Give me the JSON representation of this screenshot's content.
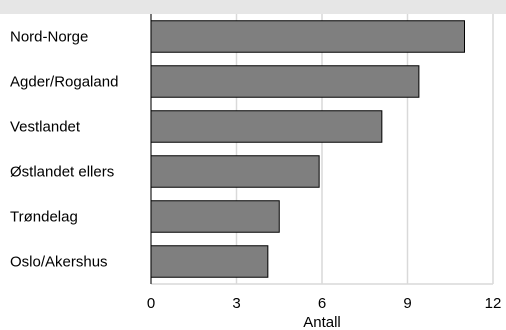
{
  "chart_data": {
    "type": "bar",
    "orientation": "horizontal",
    "categories": [
      "Nord-Norge",
      "Agder/Rogaland",
      "Vestlandet",
      "Østlandet ellers",
      "Trøndelag",
      "Oslo/Akershus"
    ],
    "values": [
      11.0,
      9.4,
      8.1,
      5.9,
      4.5,
      4.1
    ],
    "xlabel": "Antall",
    "xlim": [
      0,
      12
    ],
    "xticks": [
      0,
      3,
      6,
      9,
      12
    ],
    "grid": true,
    "legend": "none",
    "colors": {
      "bar": "#7f7f7f",
      "bar_outline": "#000000",
      "grid": "#d9d9d9",
      "band": "#e6e6e6"
    }
  }
}
